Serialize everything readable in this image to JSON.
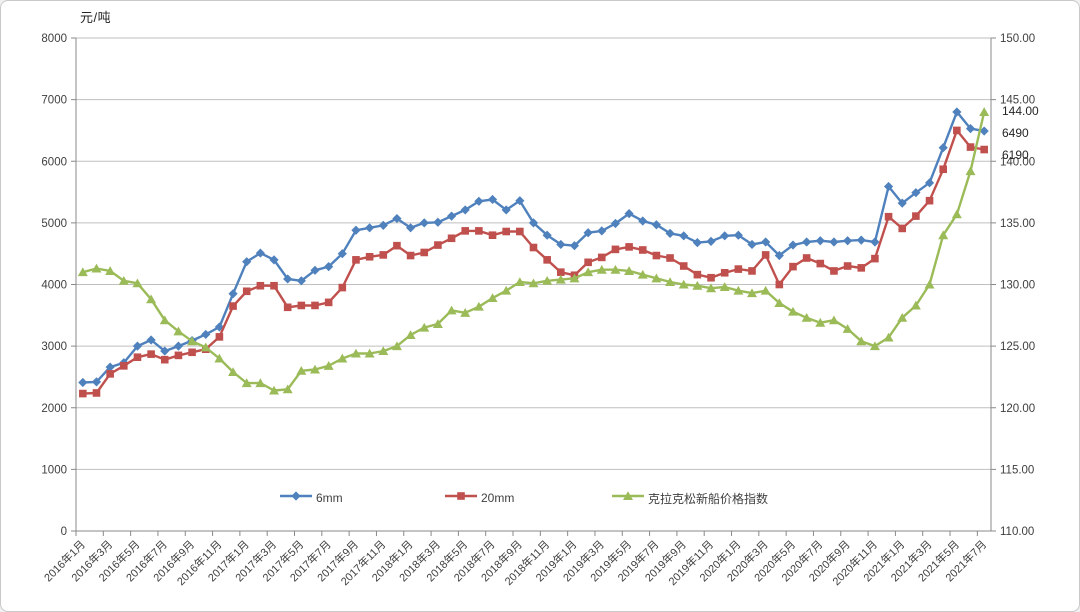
{
  "chart_data": {
    "type": "line",
    "title": "",
    "left_axis_unit": "元/吨",
    "grid": true,
    "legend_position": "bottom-inside",
    "left_axis": {
      "min": 0,
      "max": 8000,
      "step": 1000,
      "labels": [
        "0",
        "1000",
        "2000",
        "3000",
        "4000",
        "5000",
        "6000",
        "7000",
        "8000"
      ]
    },
    "right_axis": {
      "min": 110,
      "max": 150,
      "step": 5,
      "labels": [
        "110.00",
        "115.00",
        "120.00",
        "125.00",
        "130.00",
        "135.00",
        "140.00",
        "145.00",
        "150.00"
      ]
    },
    "x_tick_every": 2,
    "categories": [
      "2016年1月",
      "2016年2月",
      "2016年3月",
      "2016年4月",
      "2016年5月",
      "2016年6月",
      "2016年7月",
      "2016年8月",
      "2016年9月",
      "2016年10月",
      "2016年11月",
      "2016年12月",
      "2017年1月",
      "2017年2月",
      "2017年3月",
      "2017年4月",
      "2017年5月",
      "2017年6月",
      "2017年7月",
      "2017年8月",
      "2017年9月",
      "2017年10月",
      "2017年11月",
      "2017年12月",
      "2018年1月",
      "2018年2月",
      "2018年3月",
      "2018年4月",
      "2018年5月",
      "2018年6月",
      "2018年7月",
      "2018年8月",
      "2018年9月",
      "2018年10月",
      "2018年11月",
      "2018年12月",
      "2019年1月",
      "2019年2月",
      "2019年3月",
      "2019年4月",
      "2019年5月",
      "2019年6月",
      "2019年7月",
      "2019年8月",
      "2019年9月",
      "2019年10月",
      "2019年11月",
      "2019年12月",
      "2020年1月",
      "2020年2月",
      "2020年3月",
      "2020年4月",
      "2020年5月",
      "2020年6月",
      "2020年7月",
      "2020年8月",
      "2020年9月",
      "2020年10月",
      "2020年11月",
      "2020年12月",
      "2021年1月",
      "2021年2月",
      "2021年3月",
      "2021年4月",
      "2021年5月",
      "2021年6月",
      "2021年7月"
    ],
    "series": [
      {
        "name": "6mm",
        "axis": "left",
        "color": "#4F81BD",
        "marker": "diamond",
        "values": [
          2410,
          2420,
          2660,
          2730,
          3000,
          3100,
          2920,
          3000,
          3090,
          3190,
          3310,
          3850,
          4370,
          4510,
          4400,
          4090,
          4060,
          4230,
          4290,
          4500,
          4880,
          4920,
          4960,
          5070,
          4920,
          5000,
          5010,
          5110,
          5210,
          5350,
          5380,
          5210,
          5360,
          5000,
          4800,
          4650,
          4630,
          4840,
          4870,
          4990,
          5150,
          5030,
          4970,
          4830,
          4790,
          4680,
          4700,
          4790,
          4800,
          4650,
          4690,
          4470,
          4640,
          4690,
          4710,
          4690,
          4710,
          4720,
          4690,
          5590,
          5320,
          5490,
          5650,
          6220,
          6800,
          6530,
          6490
        ]
      },
      {
        "name": "20mm",
        "axis": "left",
        "color": "#C0504D",
        "marker": "square",
        "values": [
          2230,
          2240,
          2550,
          2680,
          2820,
          2870,
          2780,
          2850,
          2900,
          2950,
          3150,
          3650,
          3890,
          3980,
          3980,
          3630,
          3660,
          3660,
          3710,
          3950,
          4400,
          4450,
          4480,
          4630,
          4470,
          4520,
          4640,
          4750,
          4870,
          4870,
          4800,
          4860,
          4860,
          4600,
          4400,
          4200,
          4150,
          4360,
          4440,
          4570,
          4610,
          4560,
          4470,
          4430,
          4300,
          4160,
          4110,
          4190,
          4250,
          4220,
          4480,
          4000,
          4290,
          4430,
          4340,
          4220,
          4300,
          4270,
          4420,
          5100,
          4910,
          5110,
          5360,
          5870,
          6500,
          6230,
          6190
        ]
      },
      {
        "name": "克拉克松新船价格指数",
        "axis": "right",
        "color": "#9BBB59",
        "marker": "triangle",
        "values": [
          131.0,
          131.3,
          131.1,
          130.3,
          130.1,
          128.8,
          127.1,
          126.2,
          125.4,
          124.9,
          124.0,
          122.9,
          122.0,
          122.0,
          121.4,
          121.5,
          123.0,
          123.1,
          123.4,
          124.0,
          124.4,
          124.4,
          124.6,
          125.0,
          125.9,
          126.5,
          126.8,
          127.9,
          127.7,
          128.2,
          128.9,
          129.5,
          130.2,
          130.1,
          130.3,
          130.4,
          130.5,
          131.0,
          131.2,
          131.2,
          131.1,
          130.8,
          130.5,
          130.2,
          130.0,
          129.9,
          129.7,
          129.8,
          129.5,
          129.3,
          129.5,
          128.5,
          127.8,
          127.3,
          126.9,
          127.1,
          126.4,
          125.4,
          125.0,
          125.7,
          127.3,
          128.3,
          130.0,
          134.0,
          135.7,
          139.2,
          144.0
        ]
      }
    ],
    "end_labels": [
      {
        "text": "144.00",
        "series": "克拉克松新船价格指数"
      },
      {
        "text": "6490",
        "series": "6mm"
      },
      {
        "text": "6190",
        "series": "20mm"
      }
    ],
    "colors": {
      "gridline": "#bfbfbf",
      "axis_line": "#898989",
      "tick_text": "#3f3f3f"
    }
  }
}
